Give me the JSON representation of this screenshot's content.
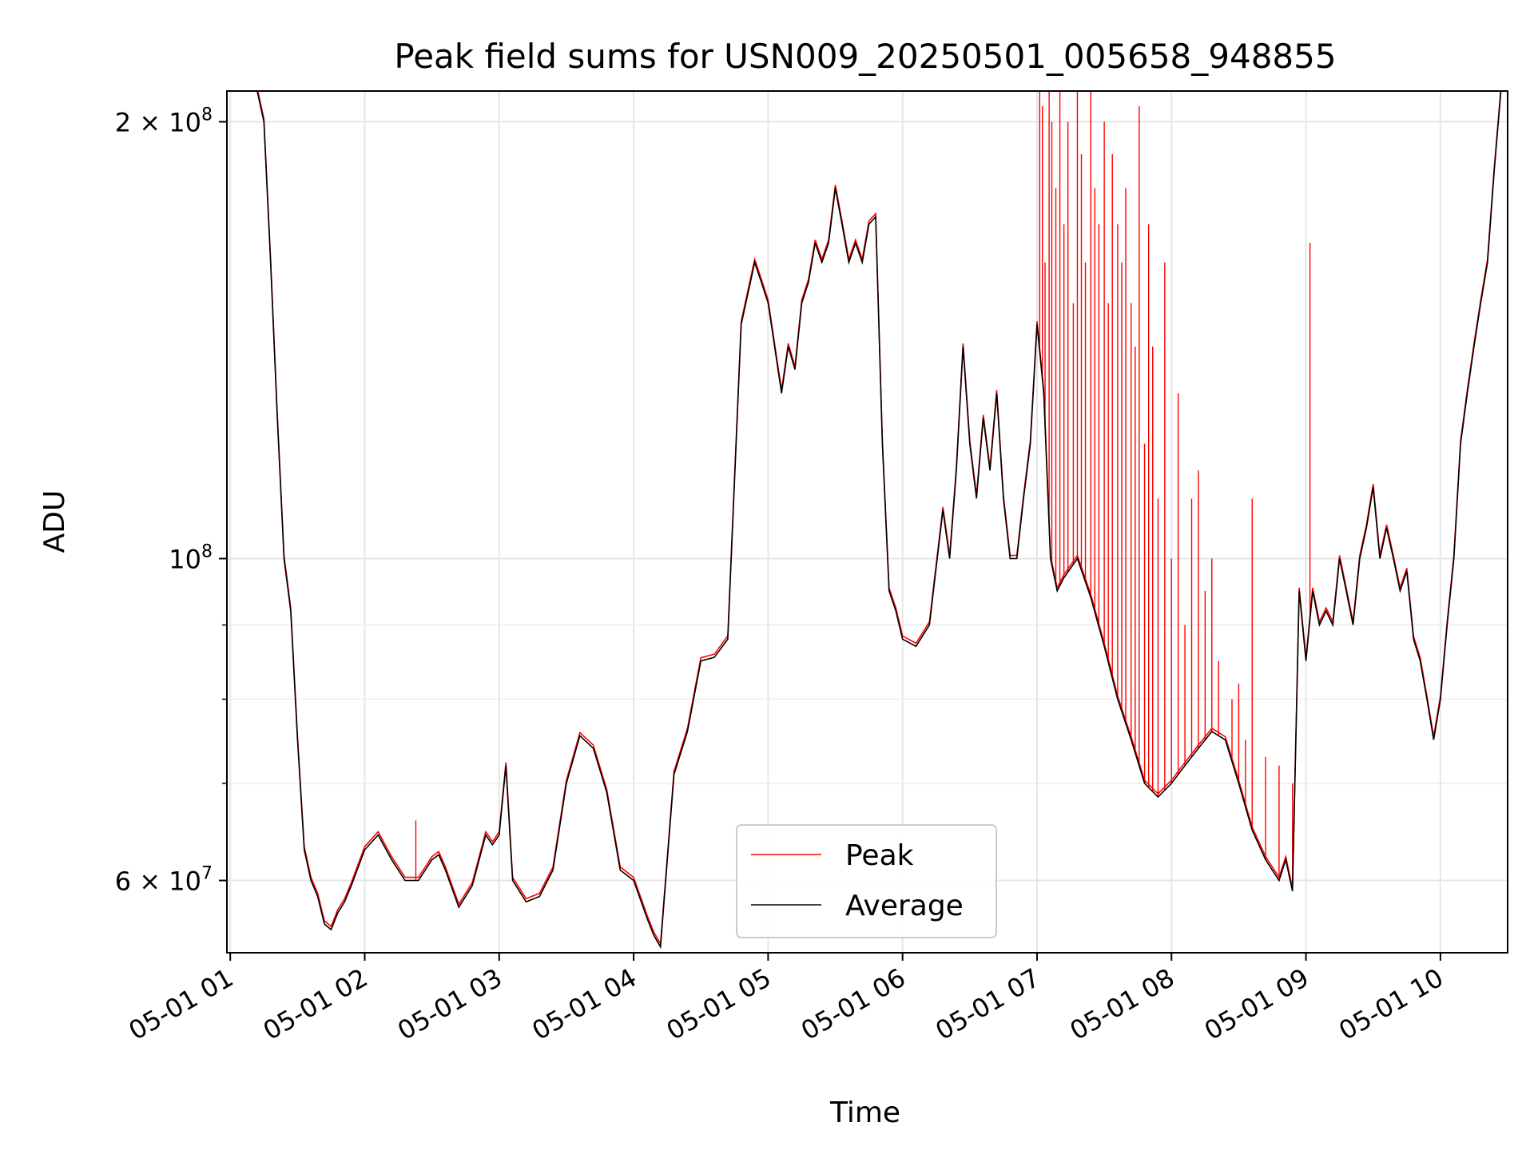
{
  "chart_data": {
    "type": "line",
    "title": "Peak field sums for USN009_20250501_005658_948855",
    "xlabel": "Time",
    "ylabel": "ADU",
    "yscale": "log",
    "ylim": [
      53500000,
      210000000
    ],
    "xlim": [
      0.975,
      10.5
    ],
    "grid": true,
    "legend": {
      "location": "lower-center",
      "entries": [
        "Peak",
        "Average"
      ]
    },
    "colors": {
      "Peak": "#ff0000",
      "Average": "#000000"
    },
    "x_ticks": [
      {
        "value": 1,
        "label": "05-01 01"
      },
      {
        "value": 2,
        "label": "05-01 02"
      },
      {
        "value": 3,
        "label": "05-01 03"
      },
      {
        "value": 4,
        "label": "05-01 04"
      },
      {
        "value": 5,
        "label": "05-01 05"
      },
      {
        "value": 6,
        "label": "05-01 06"
      },
      {
        "value": 7,
        "label": "05-01 07"
      },
      {
        "value": 8,
        "label": "05-01 08"
      },
      {
        "value": 9,
        "label": "05-01 09"
      },
      {
        "value": 10,
        "label": "05-01 10"
      }
    ],
    "y_ticks": [
      {
        "value": 60000000,
        "mantissa": "6",
        "exponent": "7"
      },
      {
        "value": 100000000,
        "mantissa": "",
        "exponent": "8"
      },
      {
        "value": 200000000,
        "mantissa": "2",
        "exponent": "8"
      }
    ],
    "y_minor_grid": [
      70000000,
      80000000,
      90000000
    ],
    "series": [
      {
        "name": "Average",
        "x": [
          0.98,
          1.2,
          1.25,
          1.3,
          1.35,
          1.4,
          1.45,
          1.5,
          1.55,
          1.6,
          1.65,
          1.7,
          1.75,
          1.8,
          1.85,
          1.9,
          2.0,
          2.1,
          2.2,
          2.3,
          2.4,
          2.5,
          2.55,
          2.6,
          2.7,
          2.8,
          2.9,
          2.95,
          3.0,
          3.05,
          3.1,
          3.15,
          3.2,
          3.3,
          3.4,
          3.5,
          3.6,
          3.7,
          3.8,
          3.9,
          4.0,
          4.1,
          4.15,
          4.2,
          4.3,
          4.4,
          4.5,
          4.6,
          4.7,
          4.8,
          4.9,
          4.95,
          5.0,
          5.1,
          5.15,
          5.2,
          5.25,
          5.3,
          5.35,
          5.4,
          5.45,
          5.5,
          5.55,
          5.6,
          5.65,
          5.7,
          5.75,
          5.8,
          5.85,
          5.9,
          5.95,
          6.0,
          6.05,
          6.1,
          6.2,
          6.3,
          6.35,
          6.4,
          6.45,
          6.5,
          6.55,
          6.6,
          6.65,
          6.7,
          6.75,
          6.8,
          6.85,
          6.9,
          6.95,
          7.0,
          7.05,
          7.1,
          7.15,
          7.2,
          7.3,
          7.4,
          7.5,
          7.6,
          7.7,
          7.8,
          7.9,
          8.0,
          8.1,
          8.2,
          8.3,
          8.4,
          8.5,
          8.6,
          8.7,
          8.8,
          8.85,
          8.9,
          8.95,
          9.0,
          9.05,
          9.1,
          9.15,
          9.2,
          9.25,
          9.3,
          9.35,
          9.4,
          9.45,
          9.5,
          9.55,
          9.6,
          9.65,
          9.7,
          9.75,
          9.8,
          9.85,
          9.9,
          9.95,
          10.0,
          10.05,
          10.1,
          10.15,
          10.2,
          10.25,
          10.3,
          10.35,
          10.4,
          10.45,
          10.5
        ],
        "values": [
          210000000,
          210000000,
          200000000,
          160000000,
          125000000,
          100000000,
          92000000,
          75000000,
          63000000,
          60000000,
          58500000,
          56000000,
          55500000,
          57000000,
          58000000,
          59500000,
          63000000,
          64500000,
          62000000,
          60000000,
          60000000,
          62000000,
          62500000,
          61000000,
          57500000,
          59500000,
          64500000,
          63500000,
          64500000,
          72000000,
          60000000,
          59000000,
          58000000,
          58500000,
          61000000,
          70000000,
          75500000,
          74000000,
          69000000,
          61000000,
          60000000,
          56500000,
          55000000,
          54000000,
          71000000,
          76000000,
          85000000,
          85500000,
          88000000,
          145000000,
          160000000,
          155000000,
          150000000,
          130000000,
          140000000,
          135000000,
          150000000,
          155000000,
          165000000,
          160000000,
          165000000,
          180000000,
          170000000,
          160000000,
          165000000,
          160000000,
          170000000,
          172000000,
          120000000,
          95000000,
          92000000,
          88000000,
          87500000,
          87000000,
          90000000,
          108000000,
          100000000,
          115000000,
          140000000,
          120000000,
          110000000,
          125000000,
          115000000,
          130000000,
          110000000,
          100000000,
          100000000,
          110000000,
          120000000,
          145000000,
          130000000,
          100000000,
          95000000,
          97000000,
          100000000,
          94000000,
          87000000,
          80000000,
          75000000,
          70000000,
          68500000,
          70000000,
          72000000,
          74000000,
          76000000,
          75000000,
          70000000,
          65000000,
          62000000,
          60000000,
          62000000,
          59000000,
          95000000,
          85000000,
          95000000,
          90000000,
          92000000,
          90000000,
          100000000,
          95000000,
          90000000,
          100000000,
          105000000,
          112000000,
          100000000,
          105000000,
          100000000,
          95000000,
          98000000,
          88000000,
          85000000,
          80000000,
          75000000,
          80000000,
          90000000,
          100000000,
          120000000,
          130000000,
          140000000,
          150000000,
          160000000,
          185000000,
          210000000,
          210000000
        ]
      },
      {
        "name": "Peak",
        "x": [
          2.38,
          7.02,
          7.04,
          7.06,
          7.09,
          7.11,
          7.14,
          7.17,
          7.2,
          7.23,
          7.27,
          7.3,
          7.33,
          7.36,
          7.4,
          7.43,
          7.46,
          7.5,
          7.53,
          7.56,
          7.6,
          7.63,
          7.66,
          7.7,
          7.73,
          7.76,
          7.8,
          7.83,
          7.86,
          7.9,
          7.95,
          8.0,
          8.05,
          8.1,
          8.15,
          8.2,
          8.25,
          8.3,
          8.35,
          8.45,
          8.5,
          8.55,
          8.6,
          8.7,
          8.8,
          8.9,
          9.03
        ],
        "values": [
          66000000,
          210000000,
          205000000,
          160000000,
          210000000,
          200000000,
          180000000,
          210000000,
          170000000,
          200000000,
          150000000,
          210000000,
          190000000,
          160000000,
          210000000,
          180000000,
          170000000,
          200000000,
          150000000,
          190000000,
          170000000,
          160000000,
          180000000,
          150000000,
          140000000,
          205000000,
          120000000,
          170000000,
          140000000,
          110000000,
          160000000,
          100000000,
          130000000,
          90000000,
          110000000,
          115000000,
          95000000,
          100000000,
          85000000,
          80000000,
          82000000,
          75000000,
          110000000,
          73000000,
          72000000,
          70000000,
          165000000
        ]
      }
    ]
  }
}
